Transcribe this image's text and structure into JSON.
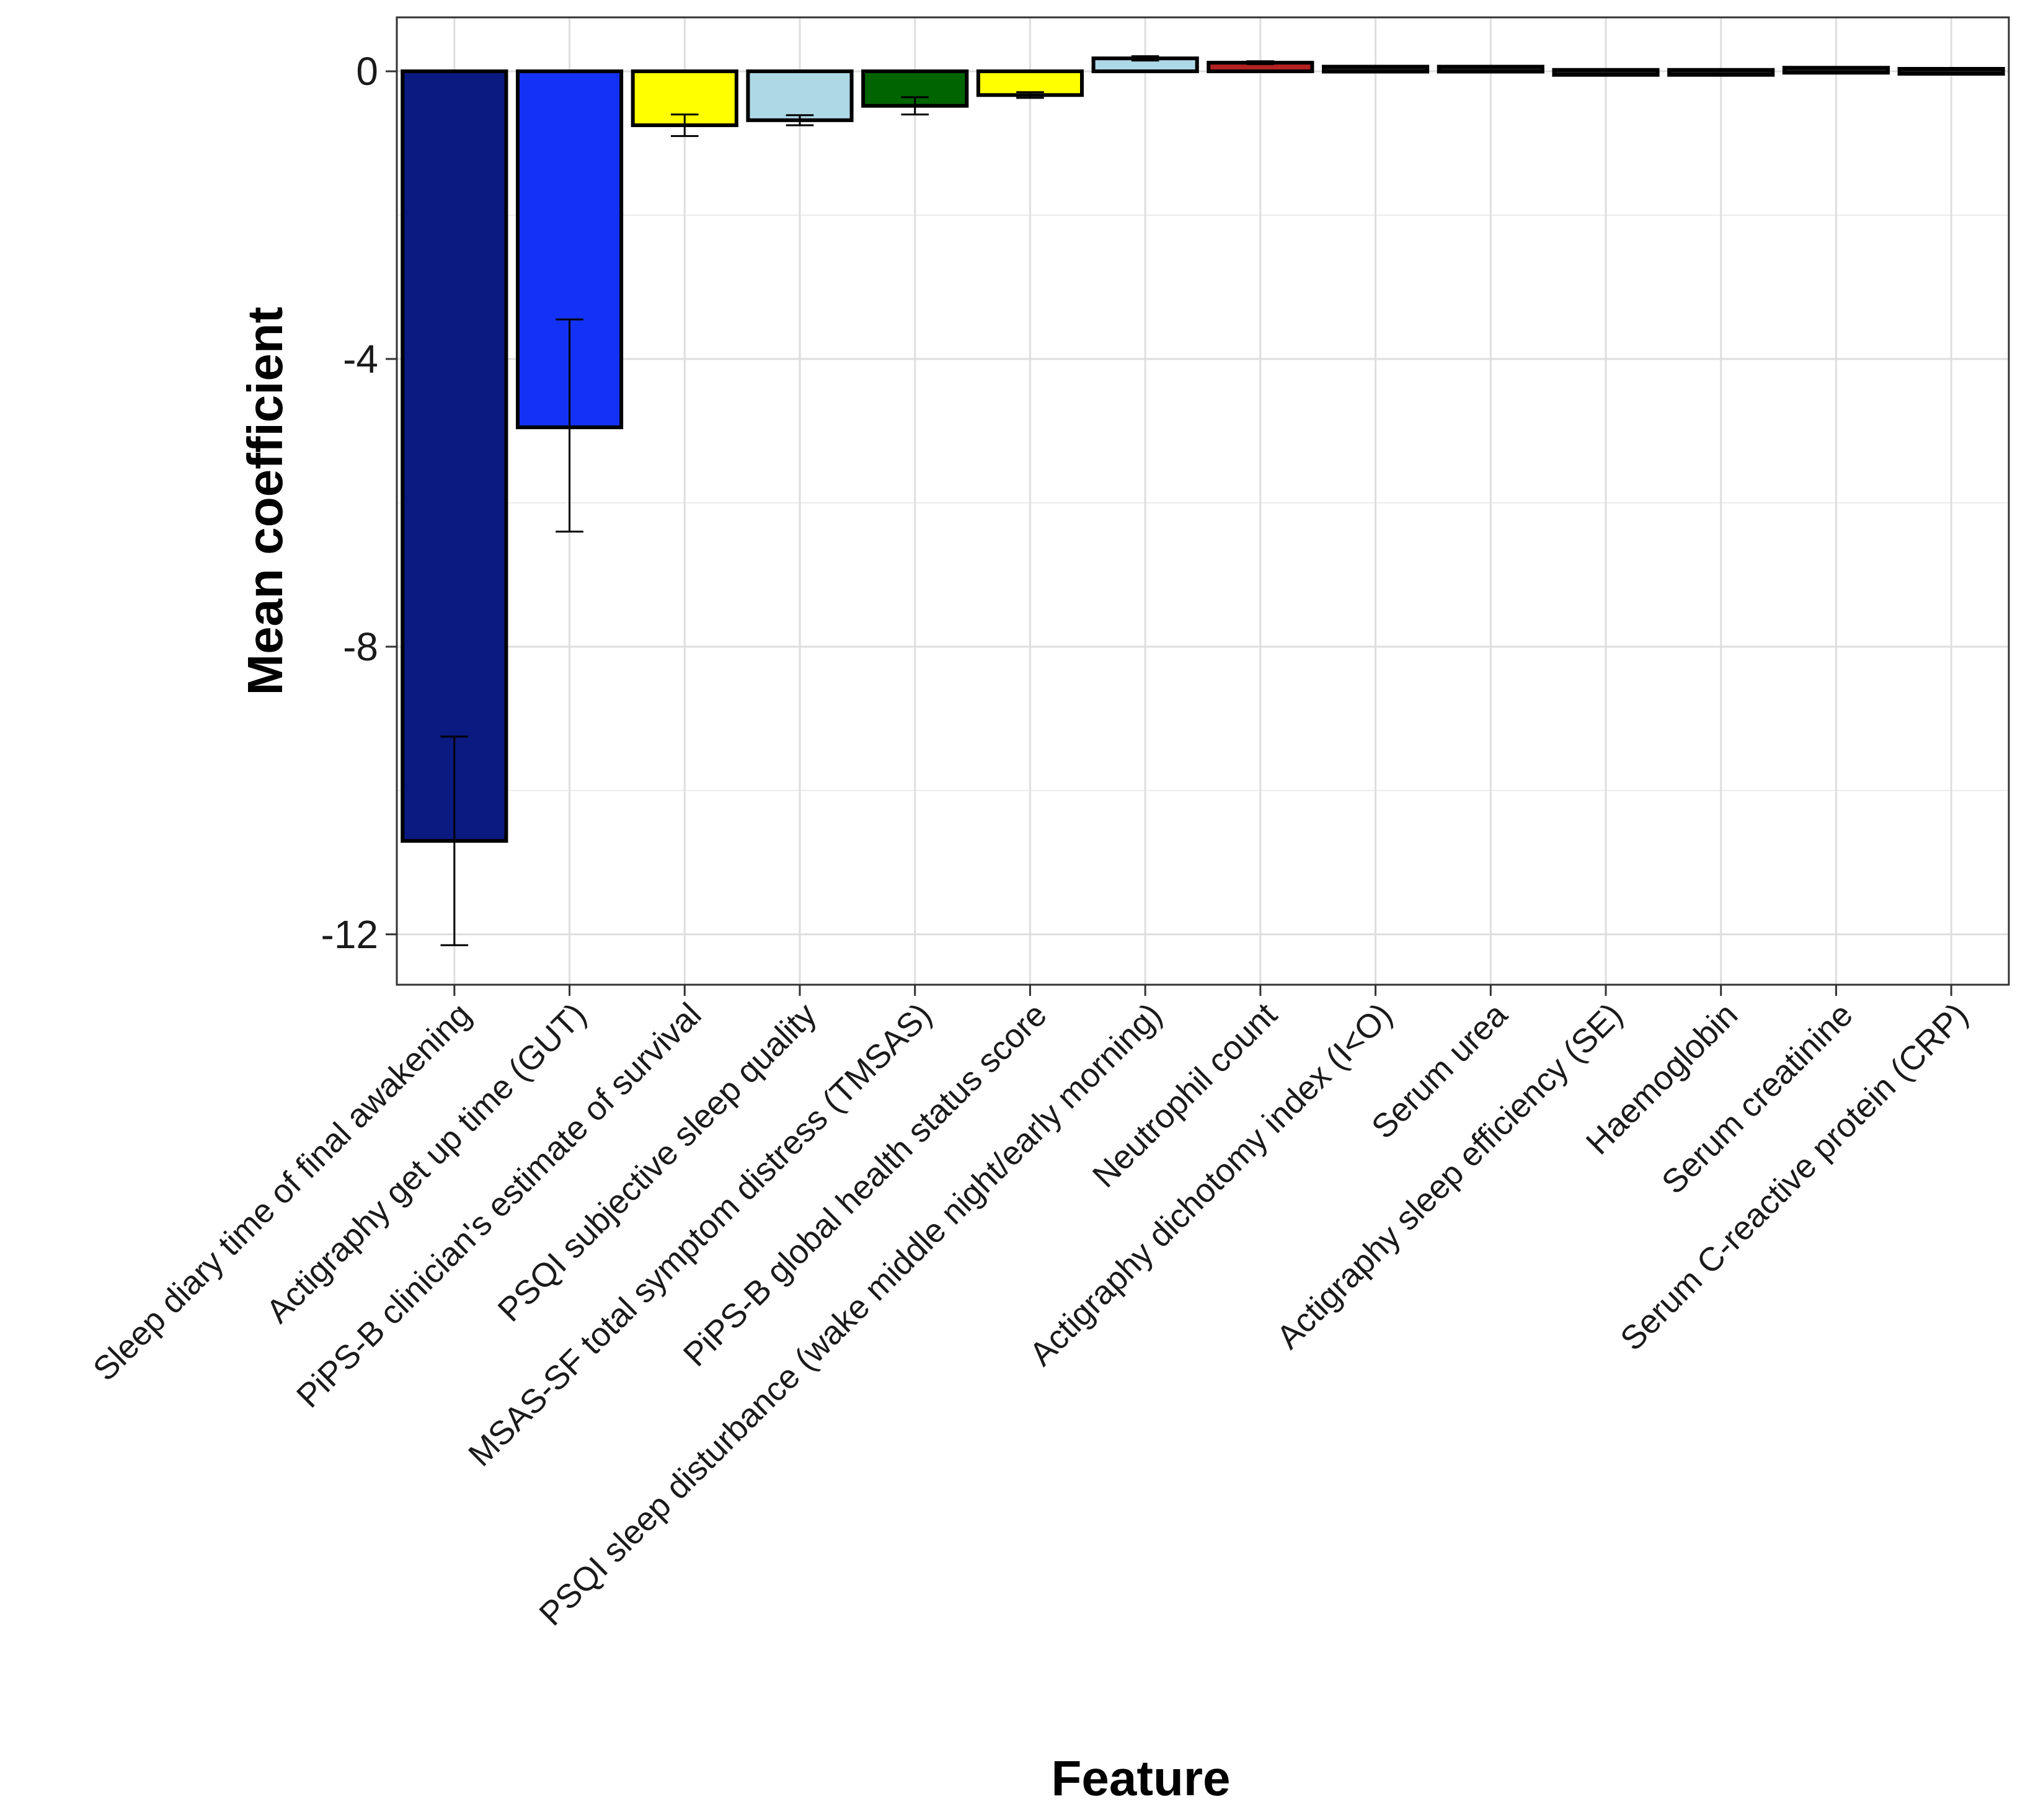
{
  "chart_data": {
    "type": "bar",
    "title": "",
    "xlabel": "Feature",
    "ylabel": "Mean coefficient",
    "ylim": [
      -12.7,
      0.75
    ],
    "yticks": [
      0,
      -4,
      -8,
      -12
    ],
    "ytick_labels": [
      "0",
      "-4",
      "-8",
      "-12"
    ],
    "grid": true,
    "legend": "none",
    "categories": [
      "Sleep diary time of final awakening",
      "Actigraphy get up time (GUT)",
      "PiPS-B clinician's estimate of survival",
      "PSQI subjective sleep quality",
      "MSAS-SF total symptom distress (TMSAS)",
      "PiPS-B global health status score",
      "PSQI sleep disturbance (wake middle night/early morning)",
      "Neutrophil count",
      "Actigraphy dichotomy index (I<O)",
      "Serum urea",
      "Actigraphy sleep efficiency (SE)",
      "Haemoglobin",
      "Serum creatinine",
      "Serum C-reactive protein (CRP)"
    ],
    "values": [
      -10.7,
      -4.95,
      -0.75,
      -0.68,
      -0.48,
      -0.33,
      0.18,
      0.12,
      0.06,
      0.06,
      -0.03,
      -0.03,
      0.03,
      0.0
    ],
    "error_low": [
      -12.15,
      -6.4,
      -0.9,
      -0.75,
      -0.6,
      -0.37,
      0.15,
      0.1,
      0.05,
      0.05,
      -0.04,
      -0.04,
      0.02,
      -0.01
    ],
    "error_high": [
      -9.25,
      -3.45,
      -0.6,
      -0.61,
      -0.36,
      -0.29,
      0.21,
      0.14,
      0.07,
      0.07,
      -0.02,
      -0.02,
      0.04,
      0.01
    ],
    "colors": [
      "#0a1a80",
      "#1432f5",
      "#ffff00",
      "#add8e6",
      "#006400",
      "#ffff00",
      "#add8e6",
      "#b22222",
      "#1a1a1a",
      "#1a1a1a",
      "#1a1a1a",
      "#1a1a1a",
      "#1a1a1a",
      "#1a1a1a"
    ]
  }
}
